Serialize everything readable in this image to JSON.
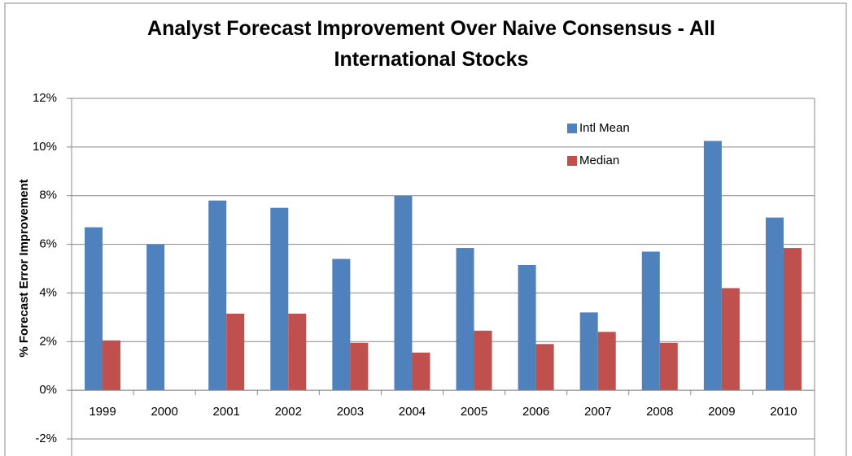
{
  "chart_data": {
    "type": "bar",
    "title": "Analyst Forecast Improvement Over Naive Consensus - All International Stocks",
    "y_label": "% Forecast Error Improvement",
    "categories": [
      "1999",
      "2000",
      "2001",
      "2002",
      "2003",
      "2004",
      "2005",
      "2006",
      "2007",
      "2008",
      "2009",
      "2010"
    ],
    "series": [
      {
        "name": "Intl Mean",
        "color": "#4f81bd",
        "values": [
          6.7,
          6.0,
          7.8,
          7.5,
          5.4,
          8.0,
          5.85,
          5.15,
          3.2,
          5.7,
          10.25,
          7.1
        ]
      },
      {
        "name": "Median",
        "color": "#c0504d",
        "values": [
          2.05,
          null,
          3.15,
          3.15,
          1.95,
          1.55,
          2.45,
          1.9,
          2.4,
          1.95,
          4.2,
          5.85
        ]
      }
    ],
    "ylim": [
      -2,
      12
    ],
    "yticks": [
      {
        "value": -2,
        "label": "-2%"
      },
      {
        "value": 0,
        "label": "0%"
      },
      {
        "value": 2,
        "label": "2%"
      },
      {
        "value": 4,
        "label": "4%"
      },
      {
        "value": 6,
        "label": "6%"
      },
      {
        "value": 8,
        "label": "8%"
      },
      {
        "value": 10,
        "label": "10%"
      },
      {
        "value": 12,
        "label": "12%"
      }
    ],
    "grid": true
  }
}
